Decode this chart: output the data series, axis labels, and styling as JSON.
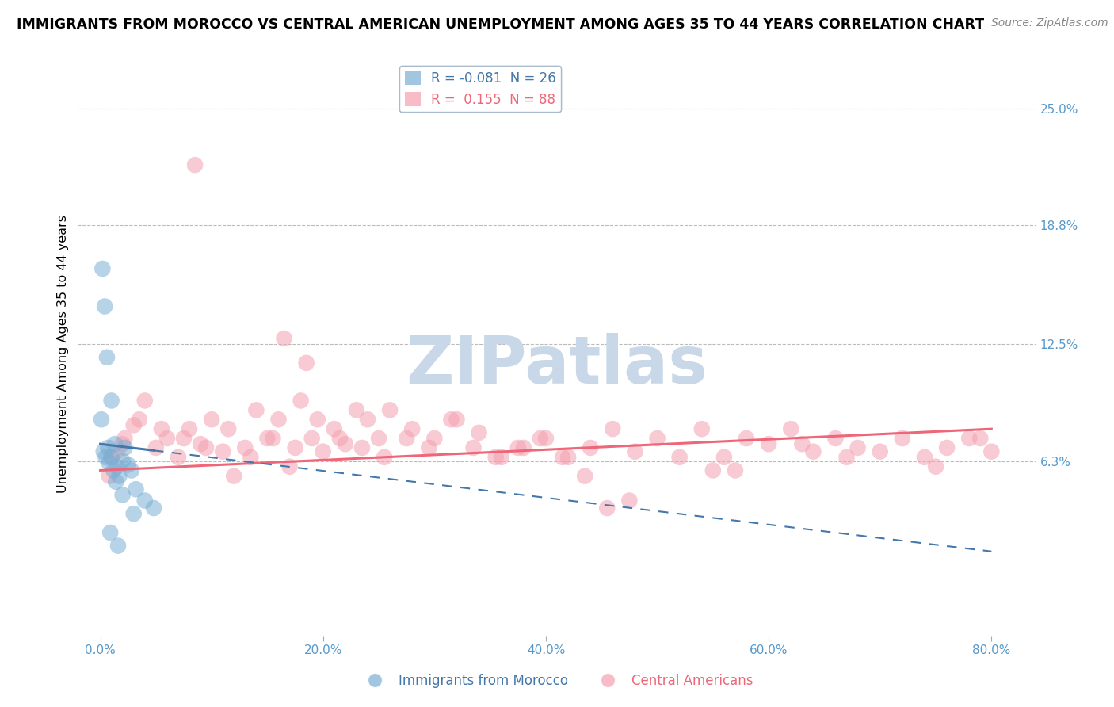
{
  "title": "IMMIGRANTS FROM MOROCCO VS CENTRAL AMERICAN UNEMPLOYMENT AMONG AGES 35 TO 44 YEARS CORRELATION CHART",
  "source": "Source: ZipAtlas.com",
  "ylabel": "Unemployment Among Ages 35 to 44 years",
  "xlabel_ticks": [
    "0.0%",
    "20.0%",
    "40.0%",
    "60.0%",
    "80.0%"
  ],
  "xlabel_vals": [
    0.0,
    20.0,
    40.0,
    60.0,
    80.0
  ],
  "ylabel_ticks": [
    "6.3%",
    "12.5%",
    "18.8%",
    "25.0%"
  ],
  "ylabel_vals": [
    6.3,
    12.5,
    18.8,
    25.0
  ],
  "ylim": [
    -3,
    27
  ],
  "xlim": [
    -2,
    84
  ],
  "morocco_R": -0.081,
  "morocco_N": 26,
  "central_R": 0.155,
  "central_N": 88,
  "morocco_color": "#7BAFD4",
  "central_color": "#F4A0B0",
  "morocco_line_color": "#4477AA",
  "central_line_color": "#EE6677",
  "watermark": "ZIPatlas",
  "watermark_color": "#C8D8E8",
  "background_color": "#FFFFFF",
  "grid_color": "#BBBBBB",
  "tick_label_color": "#5599CC",
  "title_fontsize": 12.5,
  "source_fontsize": 10,
  "morocco_x": [
    0.3,
    0.5,
    0.7,
    0.8,
    1.0,
    1.2,
    1.3,
    1.5,
    1.7,
    2.0,
    2.2,
    2.5,
    2.8,
    3.2,
    4.0,
    4.8,
    0.2,
    0.4,
    0.6,
    1.0,
    1.4,
    2.0,
    3.0,
    0.1,
    0.9,
    1.6
  ],
  "morocco_y": [
    6.8,
    6.5,
    7.0,
    6.2,
    6.5,
    5.8,
    7.2,
    6.0,
    5.5,
    6.3,
    7.0,
    6.1,
    5.8,
    4.8,
    4.2,
    3.8,
    16.5,
    14.5,
    11.8,
    9.5,
    5.2,
    4.5,
    3.5,
    8.5,
    2.5,
    1.8
  ],
  "central_x": [
    0.8,
    1.5,
    2.2,
    3.0,
    4.0,
    5.0,
    6.0,
    7.0,
    8.0,
    9.0,
    10.0,
    11.0,
    12.0,
    13.0,
    14.0,
    15.0,
    16.0,
    17.0,
    18.0,
    19.0,
    20.0,
    21.0,
    22.0,
    23.0,
    24.0,
    25.0,
    26.0,
    28.0,
    30.0,
    32.0,
    34.0,
    36.0,
    38.0,
    40.0,
    42.0,
    44.0,
    46.0,
    48.0,
    50.0,
    52.0,
    54.0,
    56.0,
    58.0,
    60.0,
    62.0,
    64.0,
    66.0,
    68.0,
    70.0,
    72.0,
    74.0,
    76.0,
    78.0,
    80.0,
    1.0,
    2.0,
    3.5,
    5.5,
    7.5,
    9.5,
    11.5,
    13.5,
    15.5,
    17.5,
    19.5,
    21.5,
    23.5,
    25.5,
    27.5,
    29.5,
    31.5,
    33.5,
    35.5,
    37.5,
    39.5,
    41.5,
    43.5,
    55.0,
    63.0,
    67.0,
    75.0,
    79.0,
    45.5,
    47.5,
    57.0,
    16.5,
    18.5,
    8.5
  ],
  "central_y": [
    5.5,
    6.8,
    7.5,
    8.2,
    9.5,
    7.0,
    7.5,
    6.5,
    8.0,
    7.2,
    8.5,
    6.8,
    5.5,
    7.0,
    9.0,
    7.5,
    8.5,
    6.0,
    9.5,
    7.5,
    6.8,
    8.0,
    7.2,
    9.0,
    8.5,
    7.5,
    9.0,
    8.0,
    7.5,
    8.5,
    7.8,
    6.5,
    7.0,
    7.5,
    6.5,
    7.0,
    8.0,
    6.8,
    7.5,
    6.5,
    8.0,
    6.5,
    7.5,
    7.2,
    8.0,
    6.8,
    7.5,
    7.0,
    6.8,
    7.5,
    6.5,
    7.0,
    7.5,
    6.8,
    6.5,
    7.2,
    8.5,
    8.0,
    7.5,
    7.0,
    8.0,
    6.5,
    7.5,
    7.0,
    8.5,
    7.5,
    7.0,
    6.5,
    7.5,
    7.0,
    8.5,
    7.0,
    6.5,
    7.0,
    7.5,
    6.5,
    5.5,
    5.8,
    7.2,
    6.5,
    6.0,
    7.5,
    3.8,
    4.2,
    5.8,
    12.8,
    11.5,
    22.0
  ],
  "morocco_trend_x0": 0.0,
  "morocco_trend_x1": 80.0,
  "morocco_trend_y0": 7.2,
  "morocco_trend_y1": 1.5,
  "central_trend_x0": 0.0,
  "central_trend_x1": 80.0,
  "central_trend_y0": 5.8,
  "central_trend_y1": 8.0
}
